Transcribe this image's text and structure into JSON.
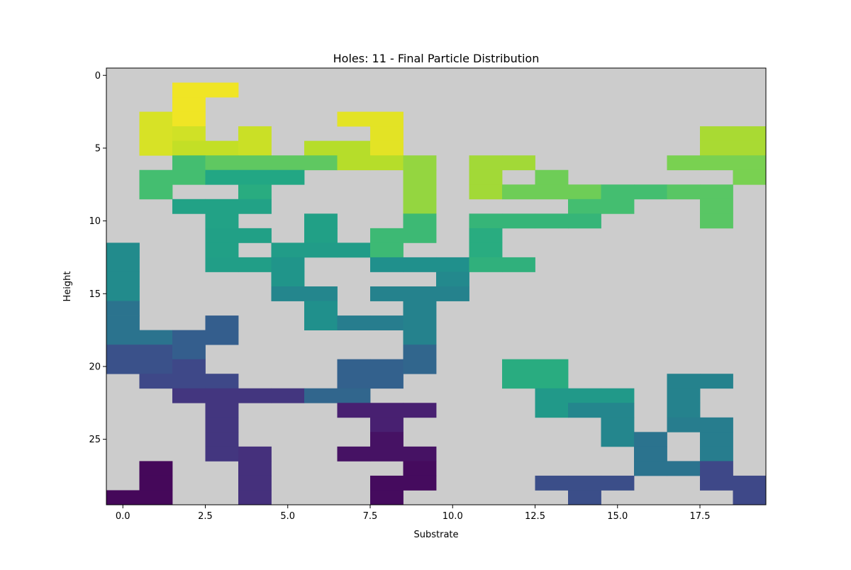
{
  "chart_data": {
    "type": "heatmap",
    "title": "Holes: 11 - Final Particle Distribution",
    "xlabel": "Substrate",
    "ylabel": "Height",
    "xlim": [
      -0.5,
      19.5
    ],
    "ylim": [
      29.5,
      -0.5
    ],
    "y_axis_inverted": true,
    "x_ticks": [
      0,
      2.5,
      5,
      7.5,
      10,
      12.5,
      15,
      17.5
    ],
    "x_tick_labels": [
      "0.0",
      "2.5",
      "5.0",
      "7.5",
      "10.0",
      "12.5",
      "15.0",
      "17.5"
    ],
    "y_ticks": [
      0,
      5,
      10,
      15,
      20,
      25
    ],
    "y_tick_labels": [
      "0",
      "5",
      "10",
      "15",
      "20",
      "25"
    ],
    "grid": false,
    "legend": "none",
    "colormap": "viridis",
    "empty_cell_color": "#cccccc",
    "value_range": [
      0,
      1
    ],
    "n_cols": 20,
    "n_rows": 30,
    "cells": [
      {
        "row": 1,
        "col": 2,
        "value": 0.98
      },
      {
        "row": 1,
        "col": 3,
        "value": 0.98
      },
      {
        "row": 2,
        "col": 2,
        "value": 0.98
      },
      {
        "row": 3,
        "col": 1,
        "value": 0.94
      },
      {
        "row": 3,
        "col": 2,
        "value": 0.98
      },
      {
        "row": 3,
        "col": 7,
        "value": 0.96
      },
      {
        "row": 3,
        "col": 8,
        "value": 0.96
      },
      {
        "row": 4,
        "col": 1,
        "value": 0.94
      },
      {
        "row": 4,
        "col": 2,
        "value": 0.93
      },
      {
        "row": 4,
        "col": 4,
        "value": 0.92
      },
      {
        "row": 4,
        "col": 8,
        "value": 0.96
      },
      {
        "row": 4,
        "col": 18,
        "value": 0.87
      },
      {
        "row": 4,
        "col": 19,
        "value": 0.87
      },
      {
        "row": 5,
        "col": 1,
        "value": 0.94
      },
      {
        "row": 5,
        "col": 2,
        "value": 0.91
      },
      {
        "row": 5,
        "col": 3,
        "value": 0.91
      },
      {
        "row": 5,
        "col": 4,
        "value": 0.92
      },
      {
        "row": 5,
        "col": 6,
        "value": 0.89
      },
      {
        "row": 5,
        "col": 7,
        "value": 0.89
      },
      {
        "row": 5,
        "col": 8,
        "value": 0.96
      },
      {
        "row": 5,
        "col": 18,
        "value": 0.87
      },
      {
        "row": 5,
        "col": 19,
        "value": 0.87
      },
      {
        "row": 6,
        "col": 2,
        "value": 0.7
      },
      {
        "row": 6,
        "col": 3,
        "value": 0.75
      },
      {
        "row": 6,
        "col": 4,
        "value": 0.75
      },
      {
        "row": 6,
        "col": 5,
        "value": 0.75
      },
      {
        "row": 6,
        "col": 6,
        "value": 0.75
      },
      {
        "row": 6,
        "col": 7,
        "value": 0.89
      },
      {
        "row": 6,
        "col": 8,
        "value": 0.89
      },
      {
        "row": 6,
        "col": 9,
        "value": 0.84
      },
      {
        "row": 6,
        "col": 11,
        "value": 0.86
      },
      {
        "row": 6,
        "col": 12,
        "value": 0.86
      },
      {
        "row": 6,
        "col": 17,
        "value": 0.8
      },
      {
        "row": 6,
        "col": 18,
        "value": 0.8
      },
      {
        "row": 6,
        "col": 19,
        "value": 0.8
      },
      {
        "row": 7,
        "col": 1,
        "value": 0.7
      },
      {
        "row": 7,
        "col": 2,
        "value": 0.7
      },
      {
        "row": 7,
        "col": 3,
        "value": 0.6
      },
      {
        "row": 7,
        "col": 4,
        "value": 0.6
      },
      {
        "row": 7,
        "col": 5,
        "value": 0.6
      },
      {
        "row": 7,
        "col": 9,
        "value": 0.84
      },
      {
        "row": 7,
        "col": 11,
        "value": 0.86
      },
      {
        "row": 7,
        "col": 13,
        "value": 0.78
      },
      {
        "row": 7,
        "col": 19,
        "value": 0.8
      },
      {
        "row": 8,
        "col": 1,
        "value": 0.7
      },
      {
        "row": 8,
        "col": 4,
        "value": 0.62
      },
      {
        "row": 8,
        "col": 9,
        "value": 0.84
      },
      {
        "row": 8,
        "col": 11,
        "value": 0.86
      },
      {
        "row": 8,
        "col": 12,
        "value": 0.78
      },
      {
        "row": 8,
        "col": 13,
        "value": 0.78
      },
      {
        "row": 8,
        "col": 14,
        "value": 0.78
      },
      {
        "row": 8,
        "col": 15,
        "value": 0.7
      },
      {
        "row": 8,
        "col": 16,
        "value": 0.7
      },
      {
        "row": 8,
        "col": 17,
        "value": 0.74
      },
      {
        "row": 8,
        "col": 18,
        "value": 0.74
      },
      {
        "row": 9,
        "col": 2,
        "value": 0.58
      },
      {
        "row": 9,
        "col": 3,
        "value": 0.58
      },
      {
        "row": 9,
        "col": 4,
        "value": 0.58
      },
      {
        "row": 9,
        "col": 9,
        "value": 0.84
      },
      {
        "row": 9,
        "col": 14,
        "value": 0.7
      },
      {
        "row": 9,
        "col": 15,
        "value": 0.7
      },
      {
        "row": 9,
        "col": 18,
        "value": 0.74
      },
      {
        "row": 10,
        "col": 3,
        "value": 0.58
      },
      {
        "row": 10,
        "col": 6,
        "value": 0.57
      },
      {
        "row": 10,
        "col": 9,
        "value": 0.68
      },
      {
        "row": 10,
        "col": 11,
        "value": 0.66
      },
      {
        "row": 10,
        "col": 12,
        "value": 0.66
      },
      {
        "row": 10,
        "col": 13,
        "value": 0.66
      },
      {
        "row": 10,
        "col": 14,
        "value": 0.66
      },
      {
        "row": 10,
        "col": 18,
        "value": 0.74
      },
      {
        "row": 11,
        "col": 3,
        "value": 0.57
      },
      {
        "row": 11,
        "col": 4,
        "value": 0.57
      },
      {
        "row": 11,
        "col": 6,
        "value": 0.57
      },
      {
        "row": 11,
        "col": 8,
        "value": 0.68
      },
      {
        "row": 11,
        "col": 9,
        "value": 0.68
      },
      {
        "row": 11,
        "col": 11,
        "value": 0.62
      },
      {
        "row": 12,
        "col": 0,
        "value": 0.48
      },
      {
        "row": 12,
        "col": 3,
        "value": 0.57
      },
      {
        "row": 12,
        "col": 5,
        "value": 0.55
      },
      {
        "row": 12,
        "col": 6,
        "value": 0.55
      },
      {
        "row": 12,
        "col": 7,
        "value": 0.55
      },
      {
        "row": 12,
        "col": 8,
        "value": 0.68
      },
      {
        "row": 12,
        "col": 11,
        "value": 0.62
      },
      {
        "row": 13,
        "col": 0,
        "value": 0.48
      },
      {
        "row": 13,
        "col": 3,
        "value": 0.56
      },
      {
        "row": 13,
        "col": 4,
        "value": 0.56
      },
      {
        "row": 13,
        "col": 5,
        "value": 0.52
      },
      {
        "row": 13,
        "col": 8,
        "value": 0.5
      },
      {
        "row": 13,
        "col": 9,
        "value": 0.5
      },
      {
        "row": 13,
        "col": 10,
        "value": 0.5
      },
      {
        "row": 13,
        "col": 11,
        "value": 0.64
      },
      {
        "row": 13,
        "col": 12,
        "value": 0.64
      },
      {
        "row": 14,
        "col": 0,
        "value": 0.48
      },
      {
        "row": 14,
        "col": 5,
        "value": 0.52
      },
      {
        "row": 14,
        "col": 10,
        "value": 0.47
      },
      {
        "row": 15,
        "col": 0,
        "value": 0.48
      },
      {
        "row": 15,
        "col": 5,
        "value": 0.46
      },
      {
        "row": 15,
        "col": 6,
        "value": 0.46
      },
      {
        "row": 15,
        "col": 8,
        "value": 0.44
      },
      {
        "row": 15,
        "col": 9,
        "value": 0.44
      },
      {
        "row": 15,
        "col": 10,
        "value": 0.44
      },
      {
        "row": 16,
        "col": 0,
        "value": 0.38
      },
      {
        "row": 16,
        "col": 6,
        "value": 0.5
      },
      {
        "row": 16,
        "col": 9,
        "value": 0.44
      },
      {
        "row": 17,
        "col": 0,
        "value": 0.38
      },
      {
        "row": 17,
        "col": 3,
        "value": 0.3
      },
      {
        "row": 17,
        "col": 6,
        "value": 0.5
      },
      {
        "row": 17,
        "col": 7,
        "value": 0.42
      },
      {
        "row": 17,
        "col": 8,
        "value": 0.42
      },
      {
        "row": 17,
        "col": 9,
        "value": 0.44
      },
      {
        "row": 18,
        "col": 0,
        "value": 0.38
      },
      {
        "row": 18,
        "col": 1,
        "value": 0.38
      },
      {
        "row": 18,
        "col": 2,
        "value": 0.3
      },
      {
        "row": 18,
        "col": 3,
        "value": 0.3
      },
      {
        "row": 18,
        "col": 9,
        "value": 0.44
      },
      {
        "row": 19,
        "col": 0,
        "value": 0.25
      },
      {
        "row": 19,
        "col": 1,
        "value": 0.25
      },
      {
        "row": 19,
        "col": 2,
        "value": 0.3
      },
      {
        "row": 19,
        "col": 9,
        "value": 0.33
      },
      {
        "row": 20,
        "col": 0,
        "value": 0.25
      },
      {
        "row": 20,
        "col": 1,
        "value": 0.25
      },
      {
        "row": 20,
        "col": 2,
        "value": 0.22
      },
      {
        "row": 20,
        "col": 7,
        "value": 0.31
      },
      {
        "row": 20,
        "col": 8,
        "value": 0.31
      },
      {
        "row": 20,
        "col": 9,
        "value": 0.33
      },
      {
        "row": 20,
        "col": 12,
        "value": 0.62
      },
      {
        "row": 20,
        "col": 13,
        "value": 0.62
      },
      {
        "row": 21,
        "col": 1,
        "value": 0.22
      },
      {
        "row": 21,
        "col": 2,
        "value": 0.22
      },
      {
        "row": 21,
        "col": 3,
        "value": 0.22
      },
      {
        "row": 21,
        "col": 7,
        "value": 0.31
      },
      {
        "row": 21,
        "col": 8,
        "value": 0.31
      },
      {
        "row": 21,
        "col": 12,
        "value": 0.62
      },
      {
        "row": 21,
        "col": 13,
        "value": 0.62
      },
      {
        "row": 21,
        "col": 17,
        "value": 0.44
      },
      {
        "row": 21,
        "col": 18,
        "value": 0.44
      },
      {
        "row": 22,
        "col": 2,
        "value": 0.16
      },
      {
        "row": 22,
        "col": 3,
        "value": 0.16
      },
      {
        "row": 22,
        "col": 4,
        "value": 0.16
      },
      {
        "row": 22,
        "col": 5,
        "value": 0.16
      },
      {
        "row": 22,
        "col": 6,
        "value": 0.33
      },
      {
        "row": 22,
        "col": 7,
        "value": 0.33
      },
      {
        "row": 22,
        "col": 13,
        "value": 0.54
      },
      {
        "row": 22,
        "col": 14,
        "value": 0.54
      },
      {
        "row": 22,
        "col": 15,
        "value": 0.54
      },
      {
        "row": 22,
        "col": 17,
        "value": 0.44
      },
      {
        "row": 23,
        "col": 3,
        "value": 0.16
      },
      {
        "row": 23,
        "col": 7,
        "value": 0.09
      },
      {
        "row": 23,
        "col": 8,
        "value": 0.09
      },
      {
        "row": 23,
        "col": 9,
        "value": 0.09
      },
      {
        "row": 23,
        "col": 13,
        "value": 0.54
      },
      {
        "row": 23,
        "col": 14,
        "value": 0.46
      },
      {
        "row": 23,
        "col": 15,
        "value": 0.46
      },
      {
        "row": 23,
        "col": 17,
        "value": 0.44
      },
      {
        "row": 24,
        "col": 3,
        "value": 0.16
      },
      {
        "row": 24,
        "col": 8,
        "value": 0.09
      },
      {
        "row": 24,
        "col": 15,
        "value": 0.46
      },
      {
        "row": 24,
        "col": 17,
        "value": 0.42
      },
      {
        "row": 24,
        "col": 18,
        "value": 0.42
      },
      {
        "row": 25,
        "col": 3,
        "value": 0.16
      },
      {
        "row": 25,
        "col": 8,
        "value": 0.05
      },
      {
        "row": 25,
        "col": 15,
        "value": 0.46
      },
      {
        "row": 25,
        "col": 16,
        "value": 0.38
      },
      {
        "row": 25,
        "col": 18,
        "value": 0.42
      },
      {
        "row": 26,
        "col": 3,
        "value": 0.16
      },
      {
        "row": 26,
        "col": 4,
        "value": 0.14
      },
      {
        "row": 26,
        "col": 7,
        "value": 0.05
      },
      {
        "row": 26,
        "col": 8,
        "value": 0.05
      },
      {
        "row": 26,
        "col": 9,
        "value": 0.05
      },
      {
        "row": 26,
        "col": 16,
        "value": 0.38
      },
      {
        "row": 26,
        "col": 18,
        "value": 0.42
      },
      {
        "row": 27,
        "col": 1,
        "value": 0.02
      },
      {
        "row": 27,
        "col": 4,
        "value": 0.14
      },
      {
        "row": 27,
        "col": 9,
        "value": 0.03
      },
      {
        "row": 27,
        "col": 16,
        "value": 0.38
      },
      {
        "row": 27,
        "col": 17,
        "value": 0.38
      },
      {
        "row": 27,
        "col": 18,
        "value": 0.22
      },
      {
        "row": 28,
        "col": 1,
        "value": 0.02
      },
      {
        "row": 28,
        "col": 4,
        "value": 0.14
      },
      {
        "row": 28,
        "col": 8,
        "value": 0.03
      },
      {
        "row": 28,
        "col": 9,
        "value": 0.03
      },
      {
        "row": 28,
        "col": 13,
        "value": 0.24
      },
      {
        "row": 28,
        "col": 14,
        "value": 0.24
      },
      {
        "row": 28,
        "col": 15,
        "value": 0.24
      },
      {
        "row": 28,
        "col": 18,
        "value": 0.22
      },
      {
        "row": 28,
        "col": 19,
        "value": 0.22
      },
      {
        "row": 29,
        "col": 0,
        "value": 0.02
      },
      {
        "row": 29,
        "col": 1,
        "value": 0.02
      },
      {
        "row": 29,
        "col": 4,
        "value": 0.14
      },
      {
        "row": 29,
        "col": 8,
        "value": 0.03
      },
      {
        "row": 29,
        "col": 14,
        "value": 0.24
      },
      {
        "row": 29,
        "col": 19,
        "value": 0.22
      }
    ]
  }
}
